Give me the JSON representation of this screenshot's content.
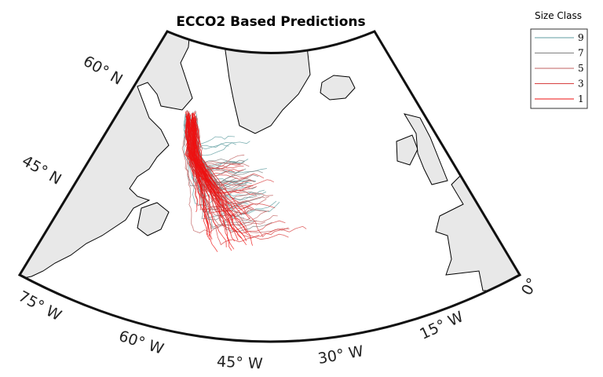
{
  "title": "ECCO2 Based Predictions",
  "legend": {
    "title": "Size Class",
    "entries": [
      {
        "name": "9",
        "color": "#5f9ea0"
      },
      {
        "name": "7",
        "color": "#808080"
      },
      {
        "name": "5",
        "color": "#c06060"
      },
      {
        "name": "3",
        "color": "#d84040"
      },
      {
        "name": "1",
        "color": "#ee1111"
      }
    ]
  },
  "lat_labels": [
    "60° N",
    "45° N"
  ],
  "lon_labels": [
    "75° W",
    "60° W",
    "45° W",
    "30° W",
    "15° W",
    "0°"
  ]
}
